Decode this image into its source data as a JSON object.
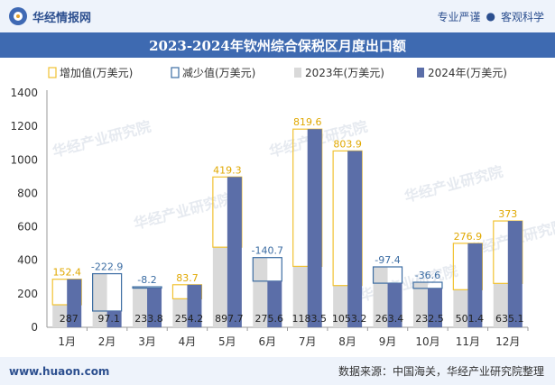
{
  "header": {
    "brand": "华经情报网",
    "tag_pro": "专业严谨",
    "tag_sep": "●",
    "tag_sci": "客观科学"
  },
  "footer": {
    "url": "www.huaon.com",
    "source": "数据来源：中国海关，华经产业研究院整理"
  },
  "watermark": "华经产业研究院",
  "colors": {
    "increase": "#f1c232",
    "decrease": "#3c6da3",
    "y2023": "#d9d9d9",
    "y2024": "#5b6ea8"
  },
  "chart_data": {
    "type": "bar",
    "title": "2023-2024年钦州综合保税区月度出口额",
    "categories": [
      "1月",
      "2月",
      "3月",
      "4月",
      "5月",
      "6月",
      "7月",
      "8月",
      "9月",
      "10月",
      "11月",
      "12月"
    ],
    "legend": [
      "增加值(万美元)",
      "减少值(万美元)",
      "2023年(万美元)",
      "2024年(万美元)"
    ],
    "legend_position": "top",
    "series": [
      {
        "name": "2023年(万美元)",
        "values": [
          134.6,
          320.0,
          242.0,
          170.5,
          478.4,
          416.3,
          363.9,
          249.3,
          360.8,
          269.1,
          224.5,
          262.1
        ]
      },
      {
        "name": "2024年(万美元)",
        "values": [
          287,
          97.1,
          233.8,
          254.2,
          897.7,
          275.6,
          1183.5,
          1053.2,
          263.4,
          232.5,
          501.4,
          635.1
        ]
      }
    ],
    "change": {
      "values": [
        152.4,
        -222.9,
        -8.2,
        83.7,
        419.3,
        -140.7,
        819.6,
        803.9,
        -97.4,
        -36.6,
        276.9,
        373
      ],
      "labels": [
        "152.4",
        "-222.9",
        "-8.2",
        "83.7",
        "419.3",
        "-140.7",
        "819.6",
        "803.9",
        "-97.4",
        "-36.6",
        "276.9",
        "373"
      ]
    },
    "value_labels": [
      "287",
      "97.1",
      "233.8",
      "254.2",
      "897.7",
      "275.6",
      "1183.5",
      "1053.2",
      "263.4",
      "232.5",
      "501.4",
      "635.1"
    ],
    "yticks": [
      "0",
      "200",
      "400",
      "600",
      "800",
      "1000",
      "1200",
      "1400"
    ],
    "ylim": [
      0,
      1400
    ],
    "grid": false
  }
}
